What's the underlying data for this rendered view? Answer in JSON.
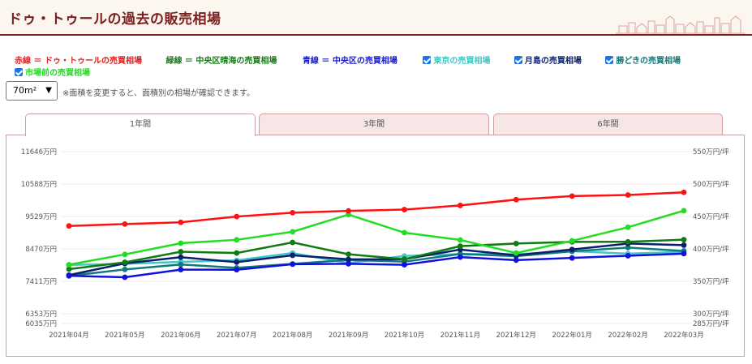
{
  "header": {
    "title": "ドゥ・トゥールの過去の販売相場"
  },
  "legend": {
    "red_label": "赤線 ＝ ドゥ・トゥールの売買相場",
    "green_label": "緑線 ＝ 中央区晴海の売買相場",
    "blue_label": "青線 ＝ 中央区の売買相場",
    "checkboxes": [
      {
        "label": "東京の売買相場",
        "color": "#3ec8c8"
      },
      {
        "label": "月島の売買相場",
        "color": "#0a1f6e"
      },
      {
        "label": "勝どきの売買相場",
        "color": "#117a7a"
      },
      {
        "label": "市場前の売買相場",
        "color": "#22dd22"
      }
    ]
  },
  "area_select": {
    "value": "70m²"
  },
  "area_note": "※面積を変更すると、面積別の相場が確認できます。",
  "tabs": [
    {
      "label": "1年間",
      "active": true
    },
    {
      "label": "3年間",
      "active": false
    },
    {
      "label": "6年間",
      "active": false
    }
  ],
  "chart_data": {
    "type": "line",
    "categories": [
      "2021年04月",
      "2021年05月",
      "2021年06月",
      "2021年07月",
      "2021年08月",
      "2021年09月",
      "2021年10月",
      "2021年11月",
      "2021年12月",
      "2022年01月",
      "2022年02月",
      "2022年03月"
    ],
    "y_left_ticks": [
      {
        "value": 6035,
        "label": "6035万円"
      },
      {
        "value": 6353,
        "label": "6353万円"
      },
      {
        "value": 7411,
        "label": "7411万円"
      },
      {
        "value": 8470,
        "label": "8470万円"
      },
      {
        "value": 9529,
        "label": "9529万円"
      },
      {
        "value": 10588,
        "label": "10588万円"
      },
      {
        "value": 11646,
        "label": "11646万円"
      }
    ],
    "y_right_ticks": [
      {
        "value": 285,
        "label": "285万円/坪"
      },
      {
        "value": 300,
        "label": "300万円/坪"
      },
      {
        "value": 350,
        "label": "350万円/坪"
      },
      {
        "value": 400,
        "label": "400万円/坪"
      },
      {
        "value": 450,
        "label": "450万円/坪"
      },
      {
        "value": 500,
        "label": "500万円/坪"
      },
      {
        "value": 550,
        "label": "550万円/坪"
      }
    ],
    "ylim": [
      6035,
      11646
    ],
    "series": [
      {
        "name": "ドゥ・トゥールの売買相場",
        "color": "#ff1111",
        "values": [
          9219,
          9281,
          9337,
          9526,
          9651,
          9711,
          9752,
          9888,
          10077,
          10194,
          10230,
          10316
        ]
      },
      {
        "name": "中央区晴海の売買相場",
        "color": "#127a12",
        "values": [
          7808,
          8031,
          8376,
          8336,
          8680,
          8295,
          8132,
          8558,
          8644,
          8699,
          8702,
          8770
        ]
      },
      {
        "name": "中央区の売買相場",
        "color": "#1111dd",
        "values": [
          7592,
          7543,
          7793,
          7788,
          7970,
          7983,
          7952,
          8202,
          8102,
          8174,
          8246,
          8316
        ]
      },
      {
        "name": "東京の売買相場",
        "color": "#3ec8c8",
        "values": [
          7947,
          7981,
          8045,
          8097,
          8333,
          8006,
          8237,
          8302,
          8294,
          8395,
          8313,
          8374
        ]
      },
      {
        "name": "月島の売買相場",
        "color": "#0a1f6e",
        "values": [
          7614,
          7997,
          8199,
          8038,
          8260,
          8128,
          8134,
          8448,
          8262,
          8451,
          8644,
          8591
        ]
      },
      {
        "name": "勝どきの売買相場",
        "color": "#117a7a",
        "values": [
          7589,
          7799,
          7960,
          7852,
          7981,
          8108,
          8052,
          8304,
          8233,
          8389,
          8513,
          8402
        ]
      },
      {
        "name": "市場前の売買相場",
        "color": "#22dd22",
        "values": [
          7953,
          8290,
          8655,
          8766,
          9030,
          9590,
          8999,
          8760,
          8336,
          8733,
          9176,
          9717
        ]
      }
    ]
  }
}
